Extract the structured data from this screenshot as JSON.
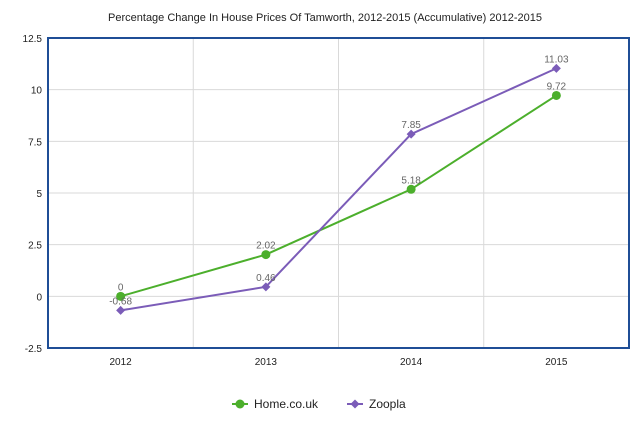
{
  "chart_data": {
    "type": "line",
    "title": "Percentage Change In House Prices Of Tamworth, 2012-2015 (Accumulative) 2012-2015",
    "categories": [
      "2012",
      "2013",
      "2014",
      "2015"
    ],
    "ylim": [
      -2.5,
      12.5
    ],
    "yticks": [
      "12.5",
      "10",
      "7.5",
      "5",
      "2.5",
      "0",
      "-2.5"
    ],
    "ytick_values": [
      12.5,
      10,
      7.5,
      5,
      2.5,
      0,
      -2.5
    ],
    "grid": true,
    "legend_position": "bottom",
    "series": [
      {
        "name": "Home.co.uk",
        "color": "#4caf2c",
        "marker": "circle",
        "values": [
          0,
          2.02,
          5.18,
          9.72
        ],
        "labels": [
          "0",
          "2.02",
          "5.18",
          "9.72"
        ]
      },
      {
        "name": "Zoopla",
        "color": "#7b5cb8",
        "marker": "diamond",
        "values": [
          -0.68,
          0.46,
          7.85,
          11.03
        ],
        "labels": [
          "-0.68",
          "0.46",
          "7.85",
          "11.03"
        ]
      }
    ]
  }
}
